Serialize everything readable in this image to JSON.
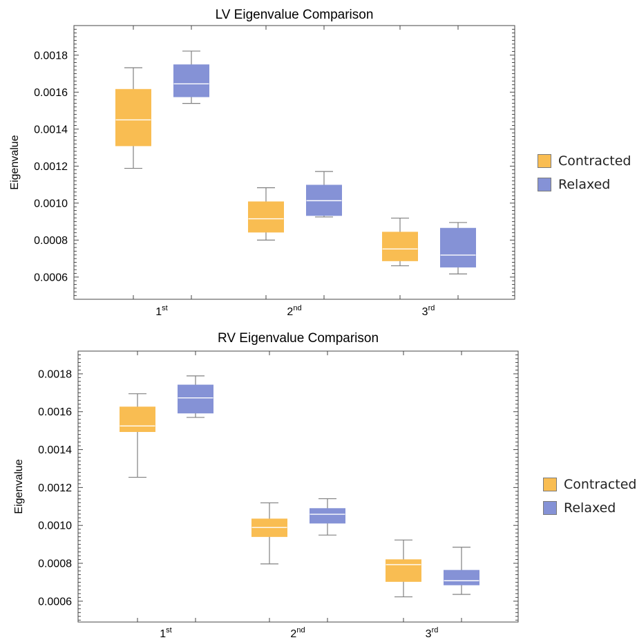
{
  "colors": {
    "contracted": "#f9bd52",
    "relaxed": "#8592d6",
    "whisker": "#808080",
    "median": "#ffffff"
  },
  "chart_data": [
    {
      "type": "box",
      "title": "LV Eigenvalue Comparison",
      "xlabel": "",
      "ylabel": "Eigenvalue",
      "ylim": [
        0.00048,
        0.00196
      ],
      "yticks": [
        "0.0006",
        "0.0008",
        "0.0010",
        "0.0012",
        "0.0014",
        "0.0016",
        "0.0018"
      ],
      "categories": [
        {
          "base": "1",
          "sup": "st"
        },
        {
          "base": "2",
          "sup": "nd"
        },
        {
          "base": "3",
          "sup": "rd"
        }
      ],
      "series": [
        {
          "name": "Contracted",
          "boxes": [
            {
              "min": 0.001188,
              "q1": 0.00131,
              "median": 0.00145,
              "q3": 0.001615,
              "max": 0.001732
            },
            {
              "min": 0.0008,
              "q1": 0.000843,
              "median": 0.000915,
              "q3": 0.001007,
              "max": 0.001083
            },
            {
              "min": 0.000661,
              "q1": 0.000688,
              "median": 0.000752,
              "q3": 0.000843,
              "max": 0.000919
            }
          ]
        },
        {
          "name": "Relaxed",
          "boxes": [
            {
              "min": 0.001539,
              "q1": 0.001575,
              "median": 0.001645,
              "q3": 0.001748,
              "max": 0.001822
            },
            {
              "min": 0.000925,
              "q1": 0.000933,
              "median": 0.001013,
              "q3": 0.001097,
              "max": 0.001171
            },
            {
              "min": 0.000617,
              "q1": 0.000654,
              "median": 0.000719,
              "q3": 0.000864,
              "max": 0.000895
            }
          ]
        }
      ]
    },
    {
      "type": "box",
      "title": "RV Eigenvalue Comparison",
      "xlabel": "",
      "ylabel": "Eigenvalue",
      "ylim": [
        0.00049,
        0.00192
      ],
      "yticks": [
        "0.0006",
        "0.0008",
        "0.0010",
        "0.0012",
        "0.0014",
        "0.0016",
        "0.0018"
      ],
      "categories": [
        {
          "base": "1",
          "sup": "st"
        },
        {
          "base": "2",
          "sup": "nd"
        },
        {
          "base": "3",
          "sup": "rd"
        }
      ],
      "series": [
        {
          "name": "Contracted",
          "boxes": [
            {
              "min": 0.001254,
              "q1": 0.001495,
              "median": 0.001525,
              "q3": 0.001625,
              "max": 0.001695
            },
            {
              "min": 0.000797,
              "q1": 0.000941,
              "median": 0.000989,
              "q3": 0.001034,
              "max": 0.001119
            },
            {
              "min": 0.000623,
              "q1": 0.000704,
              "median": 0.000793,
              "q3": 0.000819,
              "max": 0.000923
            }
          ]
        },
        {
          "name": "Relaxed",
          "boxes": [
            {
              "min": 0.00157,
              "q1": 0.001593,
              "median": 0.001673,
              "q3": 0.001741,
              "max": 0.001789
            },
            {
              "min": 0.000949,
              "q1": 0.001012,
              "median": 0.001059,
              "q3": 0.001089,
              "max": 0.001141
            },
            {
              "min": 0.000636,
              "q1": 0.000686,
              "median": 0.000708,
              "q3": 0.000763,
              "max": 0.000885
            }
          ]
        }
      ]
    }
  ],
  "legend": {
    "contracted_label": "Contracted",
    "relaxed_label": "Relaxed"
  }
}
